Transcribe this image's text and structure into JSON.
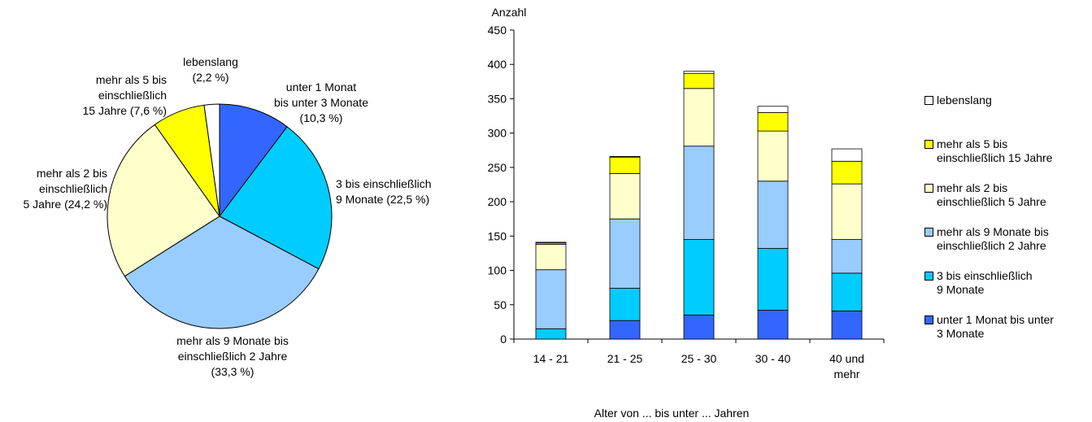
{
  "chart_data": [
    {
      "type": "pie",
      "slices": [
        {
          "label": "unter 1 Monat\nbis unter 3 Monate\n(10,3 %)",
          "value": 10.3,
          "color": "#3366ff"
        },
        {
          "label": "3 bis einschließlich\n9 Monate (22,5 %)",
          "value": 22.5,
          "color": "#00ccff"
        },
        {
          "label": "mehr als 9 Monate bis\neinschließlich 2 Jahre\n(33,3 %)",
          "value": 33.3,
          "color": "#99ccff"
        },
        {
          "label": "mehr als 2 bis\neinschließlich\n5 Jahre (24,2 %)",
          "value": 24.2,
          "color": "#ffffcc"
        },
        {
          "label": "mehr als 5 bis\neinschließlich\n15 Jahre (7,6 %)",
          "value": 7.6,
          "color": "#ffff00"
        },
        {
          "label": "lebenslang\n(2,2 %)",
          "value": 2.2,
          "color": "#ffffff"
        }
      ]
    },
    {
      "type": "bar",
      "stacked": true,
      "categories": [
        "14 - 21",
        "21 - 25",
        "25 - 30",
        "30 - 40",
        "40 und\nmehr"
      ],
      "ylabel": "Anzahl",
      "xlabel": "Alter von ... bis unter ... Jahren",
      "ylim": [
        0,
        450
      ],
      "yticks": [
        0,
        50,
        100,
        150,
        200,
        250,
        300,
        350,
        400,
        450
      ],
      "series": [
        {
          "name": "unter 1 Monat bis unter\n3 Monate",
          "color": "#3366ff",
          "values": [
            0,
            27,
            35,
            42,
            41
          ]
        },
        {
          "name": "3 bis einschließlich\n9 Monate",
          "color": "#00ccff",
          "values": [
            15,
            47,
            110,
            90,
            55
          ]
        },
        {
          "name": "mehr als 9 Monate bis\neinschließlich 2 Jahre",
          "color": "#99ccff",
          "values": [
            86,
            101,
            136,
            98,
            49
          ]
        },
        {
          "name": "mehr als 2 bis\neinschließlich 5 Jahre",
          "color": "#ffffcc",
          "values": [
            37,
            66,
            84,
            73,
            81
          ]
        },
        {
          "name": "mehr als 5 bis\neinschließlich 15 Jahre",
          "color": "#ffff00",
          "values": [
            2,
            24,
            22,
            27,
            33
          ]
        },
        {
          "name": "lebenslang",
          "color": "#ffffff",
          "values": [
            1,
            1,
            3,
            9,
            18
          ]
        }
      ],
      "legend_position": "right"
    }
  ]
}
